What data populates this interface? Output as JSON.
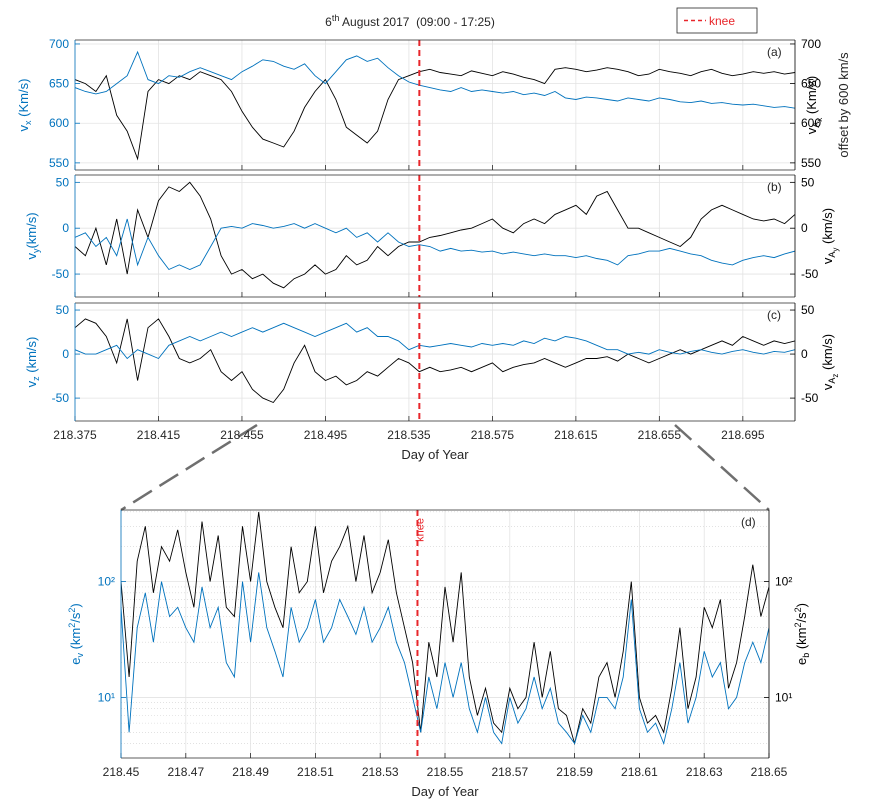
{
  "chart_data": [
    {
      "type": "line",
      "title": [
        [
          "6",
          "n"
        ],
        [
          "th",
          "sup"
        ],
        [
          " August 2017  (09:00 - 17:25)",
          "n"
        ]
      ],
      "legend": {
        "label": "knee",
        "color": "#e8262b"
      },
      "panel_label": "(a)",
      "knee_x": 218.54,
      "x": [
        218.375,
        218.38,
        218.385,
        218.39,
        218.395,
        218.4,
        218.405,
        218.41,
        218.415,
        218.42,
        218.425,
        218.43,
        218.435,
        218.44,
        218.445,
        218.45,
        218.455,
        218.46,
        218.465,
        218.47,
        218.475,
        218.48,
        218.485,
        218.49,
        218.495,
        218.5,
        218.505,
        218.51,
        218.515,
        218.52,
        218.525,
        218.53,
        218.535,
        218.54,
        218.545,
        218.55,
        218.555,
        218.56,
        218.565,
        218.57,
        218.575,
        218.58,
        218.585,
        218.59,
        218.595,
        218.6,
        218.605,
        218.61,
        218.615,
        218.62,
        218.625,
        218.63,
        218.635,
        218.64,
        218.645,
        218.65,
        218.655,
        218.66,
        218.665,
        218.67,
        218.675,
        218.68,
        218.685,
        218.69,
        218.695,
        218.7,
        218.705,
        218.71,
        218.715,
        218.72
      ],
      "xlim": [
        218.375,
        218.72
      ],
      "ylim": [
        541,
        705
      ],
      "yticks": [
        550,
        600,
        650,
        700
      ],
      "y2lim": [
        541,
        705
      ],
      "y2ticks": [
        550,
        600,
        650,
        700
      ],
      "ylabel": [
        [
          "v",
          "n"
        ],
        [
          "x",
          "sub"
        ],
        [
          " (Km/s)",
          "n"
        ]
      ],
      "y2label": [
        [
          "v",
          "n"
        ],
        [
          "A",
          "sub"
        ],
        [
          "x",
          "sub2"
        ],
        [
          " (Km/s)",
          "n"
        ]
      ],
      "y2label_note": "offset by 600 km/s",
      "series": [
        {
          "color": "#0072bd",
          "axis": "y",
          "values": [
            645,
            640,
            637,
            640,
            650,
            660,
            690,
            655,
            650,
            660,
            658,
            665,
            670,
            665,
            660,
            655,
            665,
            672,
            680,
            678,
            672,
            668,
            675,
            660,
            650,
            665,
            680,
            685,
            678,
            682,
            670,
            660,
            652,
            648,
            645,
            642,
            640,
            645,
            640,
            642,
            640,
            638,
            640,
            636,
            638,
            635,
            640,
            632,
            630,
            633,
            632,
            630,
            628,
            632,
            630,
            628,
            632,
            630,
            627,
            626,
            628,
            625,
            626,
            624,
            623,
            624,
            622,
            620,
            621,
            619
          ]
        },
        {
          "color": "#000000",
          "axis": "y2",
          "values": [
            655,
            650,
            640,
            660,
            610,
            590,
            555,
            640,
            655,
            650,
            660,
            655,
            665,
            660,
            655,
            640,
            615,
            595,
            580,
            575,
            570,
            590,
            620,
            640,
            655,
            630,
            595,
            585,
            575,
            590,
            630,
            655,
            660,
            665,
            668,
            664,
            662,
            660,
            666,
            663,
            660,
            665,
            662,
            658,
            655,
            650,
            668,
            670,
            668,
            665,
            667,
            670,
            668,
            665,
            660,
            662,
            668,
            665,
            663,
            660,
            665,
            668,
            663,
            660,
            662,
            665,
            663,
            665,
            662,
            664
          ]
        }
      ]
    },
    {
      "type": "line",
      "panel_label": "(b)",
      "knee_x": 218.54,
      "x": [
        218.375,
        218.38,
        218.385,
        218.39,
        218.395,
        218.4,
        218.405,
        218.41,
        218.415,
        218.42,
        218.425,
        218.43,
        218.435,
        218.44,
        218.445,
        218.45,
        218.455,
        218.46,
        218.465,
        218.47,
        218.475,
        218.48,
        218.485,
        218.49,
        218.495,
        218.5,
        218.505,
        218.51,
        218.515,
        218.52,
        218.525,
        218.53,
        218.535,
        218.54,
        218.545,
        218.55,
        218.555,
        218.56,
        218.565,
        218.57,
        218.575,
        218.58,
        218.585,
        218.59,
        218.595,
        218.6,
        218.605,
        218.61,
        218.615,
        218.62,
        218.625,
        218.63,
        218.635,
        218.64,
        218.645,
        218.65,
        218.655,
        218.66,
        218.665,
        218.67,
        218.675,
        218.68,
        218.685,
        218.69,
        218.695,
        218.7,
        218.705,
        218.71,
        218.715,
        218.72
      ],
      "xlim": [
        218.375,
        218.72
      ],
      "ylim": [
        -75,
        58
      ],
      "yticks": [
        -50,
        0,
        50
      ],
      "y2lim": [
        -75,
        58
      ],
      "y2ticks": [
        -50,
        0,
        50
      ],
      "ylabel": [
        [
          "v",
          "n"
        ],
        [
          "y",
          "sub"
        ],
        [
          "(km/s)",
          "n"
        ]
      ],
      "y2label": [
        [
          "v",
          "n"
        ],
        [
          "A",
          "sub"
        ],
        [
          "y",
          "sub2"
        ],
        [
          " (km/s)",
          "n"
        ]
      ],
      "series": [
        {
          "color": "#0072bd",
          "axis": "y",
          "values": [
            -10,
            -5,
            -20,
            -10,
            -30,
            10,
            -40,
            -10,
            -30,
            -45,
            -40,
            -45,
            -40,
            -20,
            0,
            2,
            0,
            5,
            3,
            0,
            2,
            5,
            0,
            5,
            0,
            -5,
            0,
            -10,
            -5,
            -15,
            -5,
            -15,
            -20,
            -18,
            -20,
            -25,
            -22,
            -25,
            -24,
            -26,
            -25,
            -28,
            -26,
            -28,
            -30,
            -28,
            -30,
            -30,
            -32,
            -30,
            -33,
            -35,
            -40,
            -30,
            -28,
            -25,
            -25,
            -22,
            -25,
            -28,
            -30,
            -35,
            -38,
            -40,
            -35,
            -32,
            -30,
            -32,
            -28,
            -25
          ]
        },
        {
          "color": "#000000",
          "axis": "y2",
          "values": [
            -20,
            -30,
            0,
            -40,
            10,
            -50,
            20,
            -10,
            30,
            45,
            40,
            50,
            35,
            10,
            -30,
            -50,
            -45,
            -55,
            -50,
            -60,
            -65,
            -55,
            -50,
            -40,
            -50,
            -45,
            -30,
            -40,
            -35,
            -20,
            -30,
            -20,
            -15,
            -15,
            -10,
            -8,
            -5,
            -2,
            0,
            5,
            10,
            0,
            -5,
            5,
            10,
            5,
            15,
            20,
            25,
            15,
            35,
            40,
            20,
            0,
            0,
            -5,
            -10,
            -15,
            -20,
            -10,
            10,
            20,
            25,
            20,
            15,
            10,
            8,
            10,
            5,
            15
          ]
        }
      ]
    },
    {
      "type": "line",
      "panel_label": "(c)",
      "knee_x": 218.54,
      "x": [
        218.375,
        218.38,
        218.385,
        218.39,
        218.395,
        218.4,
        218.405,
        218.41,
        218.415,
        218.42,
        218.425,
        218.43,
        218.435,
        218.44,
        218.445,
        218.45,
        218.455,
        218.46,
        218.465,
        218.47,
        218.475,
        218.48,
        218.485,
        218.49,
        218.495,
        218.5,
        218.505,
        218.51,
        218.515,
        218.52,
        218.525,
        218.53,
        218.535,
        218.54,
        218.545,
        218.55,
        218.555,
        218.56,
        218.565,
        218.57,
        218.575,
        218.58,
        218.585,
        218.59,
        218.595,
        218.6,
        218.605,
        218.61,
        218.615,
        218.62,
        218.625,
        218.63,
        218.635,
        218.64,
        218.645,
        218.65,
        218.655,
        218.66,
        218.665,
        218.67,
        218.675,
        218.68,
        218.685,
        218.69,
        218.695,
        218.7,
        218.705,
        218.71,
        218.715,
        218.72
      ],
      "xlim": [
        218.375,
        218.72
      ],
      "xticks": [
        218.375,
        218.415,
        218.455,
        218.495,
        218.535,
        218.575,
        218.615,
        218.655,
        218.695
      ],
      "xlabel": "Day of Year",
      "ylim": [
        -76,
        58
      ],
      "yticks": [
        -50,
        0,
        50
      ],
      "y2lim": [
        -76,
        58
      ],
      "y2ticks": [
        -50,
        0,
        50
      ],
      "ylabel": [
        [
          "v",
          "n"
        ],
        [
          "z",
          "sub"
        ],
        [
          " (km/s)",
          "n"
        ]
      ],
      "y2label": [
        [
          "v",
          "n"
        ],
        [
          "A",
          "sub"
        ],
        [
          "z",
          "sub2"
        ],
        [
          " (km/s)",
          "n"
        ]
      ],
      "series": [
        {
          "color": "#0072bd",
          "axis": "y",
          "values": [
            5,
            0,
            0,
            5,
            10,
            -5,
            5,
            0,
            -5,
            10,
            15,
            20,
            15,
            20,
            25,
            20,
            25,
            30,
            25,
            30,
            35,
            30,
            25,
            20,
            25,
            30,
            35,
            25,
            30,
            20,
            20,
            15,
            5,
            10,
            8,
            10,
            12,
            10,
            8,
            12,
            10,
            12,
            10,
            15,
            12,
            18,
            15,
            20,
            18,
            15,
            10,
            5,
            5,
            0,
            2,
            0,
            5,
            2,
            0,
            3,
            5,
            2,
            0,
            3,
            5,
            2,
            0,
            3,
            2,
            5
          ]
        },
        {
          "color": "#000000",
          "axis": "y2",
          "values": [
            30,
            40,
            35,
            20,
            -10,
            40,
            -30,
            30,
            40,
            20,
            -5,
            -10,
            -5,
            5,
            -20,
            -30,
            -20,
            -40,
            -50,
            -55,
            -40,
            -10,
            10,
            -20,
            -30,
            -25,
            -35,
            -30,
            -20,
            -25,
            -15,
            -5,
            -10,
            -20,
            -15,
            -20,
            -18,
            -15,
            -20,
            -15,
            -10,
            -20,
            -15,
            -12,
            -10,
            -5,
            -10,
            -15,
            -10,
            -5,
            -5,
            -3,
            -8,
            0,
            -5,
            -10,
            -5,
            0,
            5,
            0,
            5,
            10,
            15,
            10,
            20,
            15,
            10,
            15,
            12,
            15
          ]
        }
      ]
    },
    {
      "type": "line",
      "panel_label": "(d)",
      "knee_x": 218.5415,
      "annotation": "knee",
      "ylog": true,
      "x": [
        218.45,
        218.4525,
        218.455,
        218.4575,
        218.46,
        218.4625,
        218.465,
        218.4675,
        218.47,
        218.4725,
        218.475,
        218.4775,
        218.48,
        218.4825,
        218.485,
        218.4875,
        218.49,
        218.4925,
        218.495,
        218.4975,
        218.5,
        218.5025,
        218.505,
        218.5075,
        218.51,
        218.5125,
        218.515,
        218.5175,
        218.52,
        218.5225,
        218.525,
        218.5275,
        218.53,
        218.5325,
        218.535,
        218.5375,
        218.54,
        218.5425,
        218.545,
        218.5475,
        218.55,
        218.5525,
        218.555,
        218.5575,
        218.56,
        218.5625,
        218.565,
        218.5675,
        218.57,
        218.5725,
        218.575,
        218.5775,
        218.58,
        218.5825,
        218.585,
        218.5875,
        218.59,
        218.5925,
        218.595,
        218.5975,
        218.6,
        218.6025,
        218.605,
        218.6075,
        218.61,
        218.6125,
        218.615,
        218.6175,
        218.62,
        218.6225,
        218.625,
        218.6275,
        218.63,
        218.6325,
        218.635,
        218.6375,
        218.64,
        218.6425,
        218.645,
        218.6475,
        218.65
      ],
      "xlim": [
        218.45,
        218.65
      ],
      "xticks": [
        218.45,
        218.47,
        218.49,
        218.51,
        218.53,
        218.55,
        218.57,
        218.59,
        218.61,
        218.63,
        218.65
      ],
      "xlabel": "Day of Year",
      "ylim": [
        3,
        415
      ],
      "yticks": [
        {
          "value": 10,
          "label": "10¹"
        },
        {
          "value": 100,
          "label": "10²"
        }
      ],
      "y2lim": [
        3,
        415
      ],
      "y2ticks": [
        {
          "value": 10,
          "label": "10¹"
        },
        {
          "value": 100,
          "label": "10²"
        }
      ],
      "ylabel": [
        [
          "e",
          "n"
        ],
        [
          "v",
          "sub"
        ],
        [
          " (km",
          "n"
        ],
        [
          "2",
          "sup"
        ],
        [
          "/s",
          "n"
        ],
        [
          "2",
          "sup"
        ],
        [
          ")",
          "n"
        ]
      ],
      "y2label": [
        [
          "e",
          "n"
        ],
        [
          "b",
          "sub"
        ],
        [
          " (km",
          "n"
        ],
        [
          "2",
          "sup"
        ],
        [
          "/s",
          "n"
        ],
        [
          "2",
          "sup"
        ],
        [
          ")",
          "n"
        ]
      ],
      "series": [
        {
          "color": "#0072bd",
          "axis": "y",
          "values": [
            60,
            5,
            40,
            80,
            30,
            100,
            50,
            60,
            40,
            30,
            90,
            40,
            60,
            20,
            15,
            100,
            30,
            120,
            40,
            25,
            15,
            60,
            30,
            40,
            70,
            30,
            40,
            70,
            50,
            35,
            60,
            30,
            40,
            60,
            30,
            20,
            10,
            5,
            15,
            8,
            20,
            10,
            20,
            8,
            5,
            10,
            5,
            4,
            10,
            6,
            8,
            15,
            8,
            12,
            6,
            5,
            4,
            7,
            5,
            10,
            10,
            8,
            15,
            70,
            8,
            5,
            6,
            4,
            8,
            20,
            6,
            10,
            25,
            15,
            20,
            8,
            10,
            20,
            30,
            20,
            40
          ]
        },
        {
          "color": "#000000",
          "axis": "y2",
          "values": [
            100,
            15,
            150,
            300,
            80,
            200,
            150,
            280,
            120,
            60,
            330,
            100,
            250,
            60,
            50,
            300,
            100,
            400,
            100,
            60,
            40,
            200,
            80,
            100,
            300,
            80,
            150,
            200,
            300,
            100,
            250,
            80,
            120,
            230,
            80,
            40,
            20,
            5,
            30,
            15,
            90,
            30,
            120,
            15,
            7,
            12,
            6,
            5,
            12,
            8,
            10,
            30,
            10,
            25,
            8,
            7,
            4,
            8,
            6,
            15,
            20,
            10,
            25,
            100,
            10,
            6,
            7,
            5,
            12,
            40,
            8,
            15,
            60,
            40,
            70,
            12,
            20,
            50,
            140,
            50,
            90
          ]
        }
      ]
    }
  ]
}
